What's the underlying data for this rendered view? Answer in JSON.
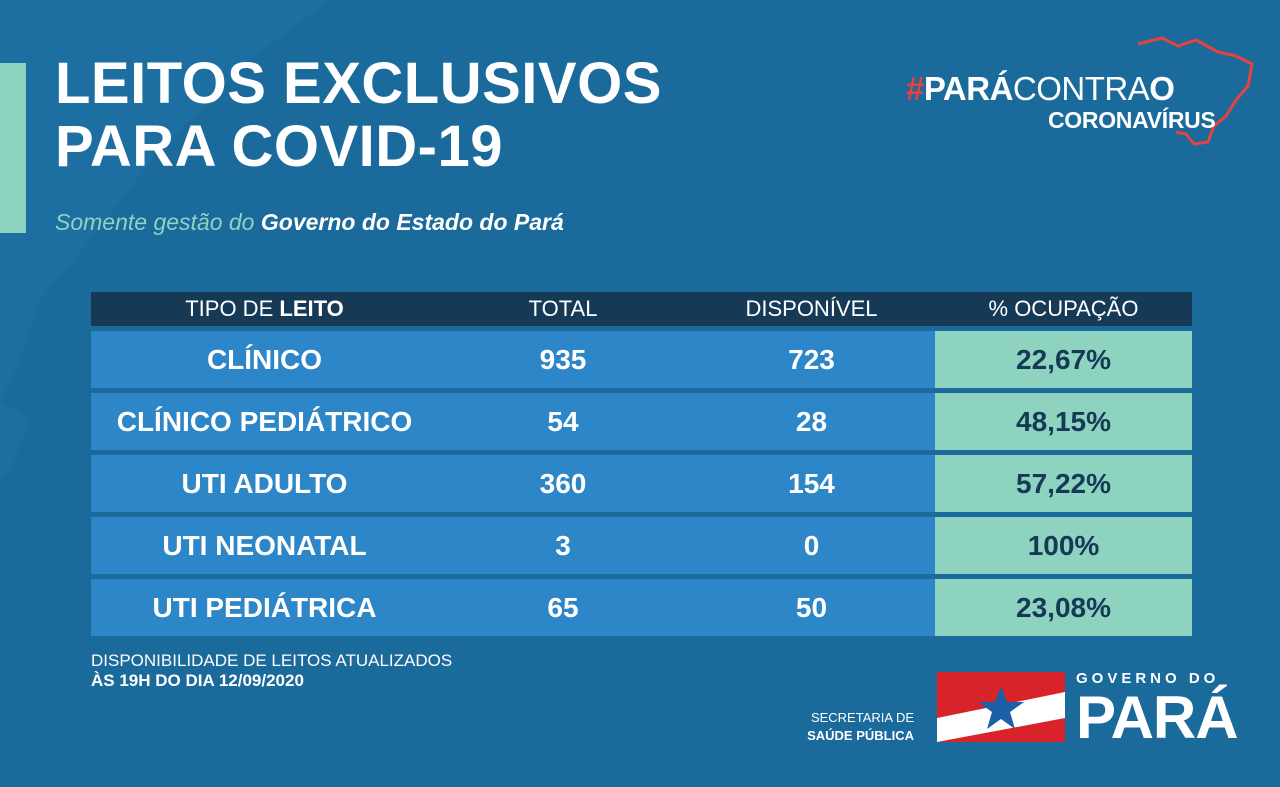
{
  "header": {
    "title_line1": "LEITOS EXCLUSIVOS",
    "title_line2": "PARA COVID-19",
    "subtitle_soft": "Somente gestão do",
    "subtitle_strong": "Governo do Estado do Pará"
  },
  "campaign": {
    "hash": "#",
    "para": "PARÁ",
    "contra": "CONTRA",
    "o": "O",
    "coronavirus": "CORONAVÍRUS",
    "accent_color": "#e8423f"
  },
  "table": {
    "headers": {
      "tipo_prefix": "TIPO DE",
      "tipo_bold": "LEITO",
      "total": "TOTAL",
      "disponivel": "DISPONÍVEL",
      "ocupacao": "% OCUPAÇÃO"
    },
    "rows": [
      {
        "tipo": "CLÍNICO",
        "total": "935",
        "disponivel": "723",
        "ocupacao": "22,67%"
      },
      {
        "tipo": "CLÍNICO PEDIÁTRICO",
        "total": "54",
        "disponivel": "28",
        "ocupacao": "48,15%"
      },
      {
        "tipo": "UTI ADULTO",
        "total": "360",
        "disponivel": "154",
        "ocupacao": "57,22%"
      },
      {
        "tipo": "UTI NEONATAL",
        "total": "3",
        "disponivel": "0",
        "ocupacao": "100%"
      },
      {
        "tipo": "UTI PEDIÁTRICA",
        "total": "65",
        "disponivel": "50",
        "ocupacao": "23,08%"
      }
    ]
  },
  "footer": {
    "update_line1": "DISPONIBILIDADE DE LEITOS ATUALIZADOS",
    "update_line2": "ÀS 19H DO DIA 12/09/2020",
    "secretaria_line1": "SECRETARIA DE",
    "secretaria_line2": "SAÚDE PÚBLICA",
    "gov_small": "GOVERNO DO",
    "gov_big": "PARÁ"
  },
  "colors": {
    "background": "#1b6a9c",
    "row": "#2d86c8",
    "header_row": "#163a55",
    "occupancy": "#8dd3c0",
    "flag_red": "#d8232a",
    "flag_blue": "#1b5fa8"
  }
}
